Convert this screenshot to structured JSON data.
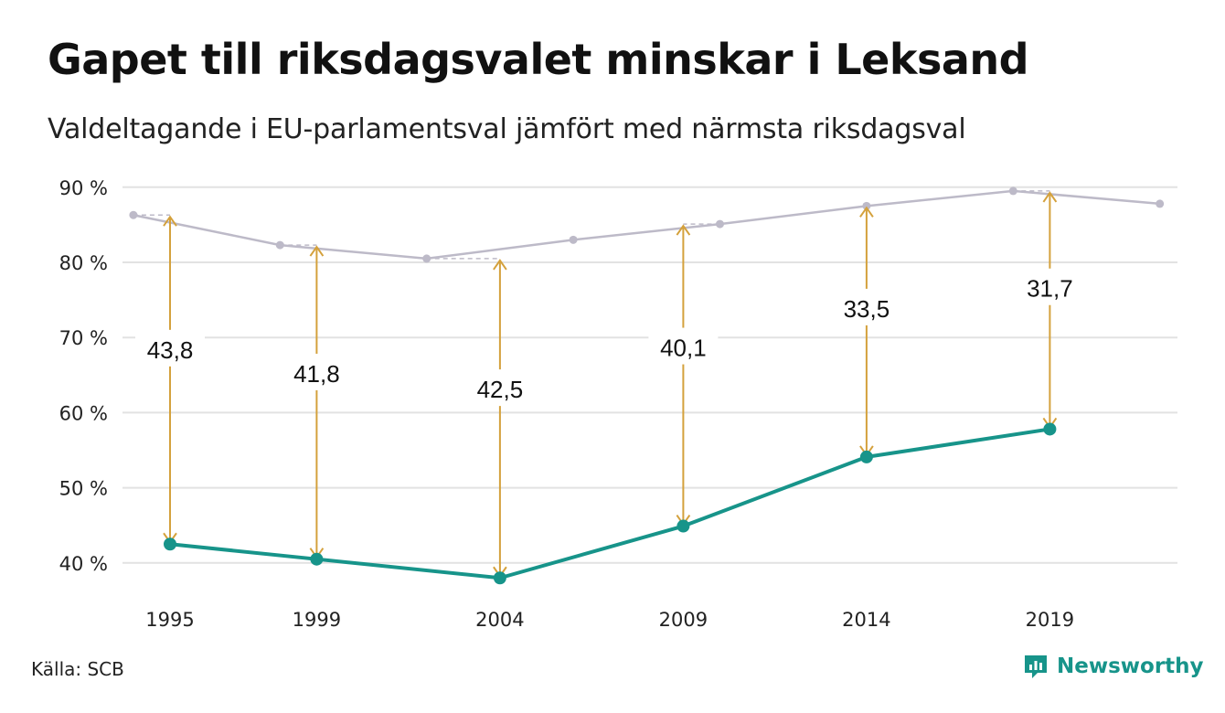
{
  "header": {
    "title": "Gapet till riksdagsvalet minskar i Leksand",
    "subtitle": "Valdeltagande i EU-parlamentsval jämfört med närmsta riksdagsval"
  },
  "footer": {
    "source": "Källa: SCB",
    "brand": "Newsworthy"
  },
  "colors": {
    "eu_line": "#17948a",
    "riksdag_line": "#bdbac8",
    "arrow": "#d4a13c",
    "grid": "#e2e2e2",
    "brand": "#17948a"
  },
  "chart_data": {
    "type": "line",
    "y_ticks": [
      "90 %",
      "80 %",
      "70 %",
      "60 %",
      "50 %",
      "40 %"
    ],
    "ylim": [
      37,
      91
    ],
    "x_ticks": [
      "1995",
      "1999",
      "2004",
      "2009",
      "2014",
      "2019"
    ],
    "grid": true,
    "series": [
      {
        "key": "riksdag",
        "x": [
          1994,
          1998,
          2002,
          2006,
          2010,
          2014,
          2018,
          2022
        ],
        "values": [
          86.3,
          82.3,
          80.5,
          83.0,
          85.1,
          87.5,
          89.5,
          87.8
        ]
      },
      {
        "key": "eu",
        "x": [
          1995,
          1999,
          2004,
          2009,
          2014,
          2019
        ],
        "values": [
          42.5,
          40.5,
          38.0,
          44.9,
          54.1,
          57.8
        ]
      }
    ],
    "gaps": [
      {
        "year": 1995,
        "label": "43,8",
        "top": 86.3,
        "bottom": 42.5
      },
      {
        "year": 1999,
        "label": "41,8",
        "top": 82.3,
        "bottom": 40.5
      },
      {
        "year": 2004,
        "label": "42,5",
        "top": 80.5,
        "bottom": 38.0
      },
      {
        "year": 2009,
        "label": "40,1",
        "top": 85.1,
        "bottom": 44.9
      },
      {
        "year": 2014,
        "label": "33,5",
        "top": 87.5,
        "bottom": 54.1
      },
      {
        "year": 2019,
        "label": "31,7",
        "top": 89.5,
        "bottom": 57.8
      }
    ]
  }
}
